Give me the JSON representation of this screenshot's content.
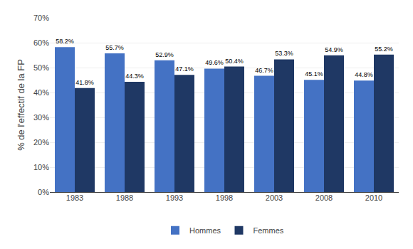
{
  "chart_data": {
    "type": "bar",
    "ylabel": "% de l'effectif de la FP",
    "categories": [
      "1983",
      "1988",
      "1993",
      "1998",
      "2003",
      "2008",
      "2010"
    ],
    "series": [
      {
        "name": "Hommes",
        "color": "#4472C4",
        "values": [
          58.2,
          55.7,
          52.9,
          49.6,
          46.7,
          45.1,
          44.8
        ],
        "value_labels": [
          "58.2%",
          "55.7%",
          "52.9%",
          "49.6%",
          "46.7%",
          "45.1%",
          "44.8%"
        ]
      },
      {
        "name": "Femmes",
        "color": "#1F3864",
        "values": [
          41.8,
          44.3,
          47.1,
          50.4,
          53.3,
          54.9,
          55.2
        ],
        "value_labels": [
          "41.8%",
          "44.3%",
          "47.1%",
          "50.4%",
          "53.3%",
          "54.9%",
          "55.2%"
        ]
      }
    ],
    "ylim": [
      0,
      70
    ],
    "yticks": [
      {
        "value": 0,
        "label": "0%"
      },
      {
        "value": 10,
        "label": "10%"
      },
      {
        "value": 20,
        "label": "20%"
      },
      {
        "value": 30,
        "label": "30%"
      },
      {
        "value": 40,
        "label": "40%"
      },
      {
        "value": 50,
        "label": "50%"
      },
      {
        "value": 60,
        "label": "60%"
      },
      {
        "value": 70,
        "label": "70%"
      }
    ],
    "grid": true,
    "legend": "bottom",
    "data_labels": true
  }
}
